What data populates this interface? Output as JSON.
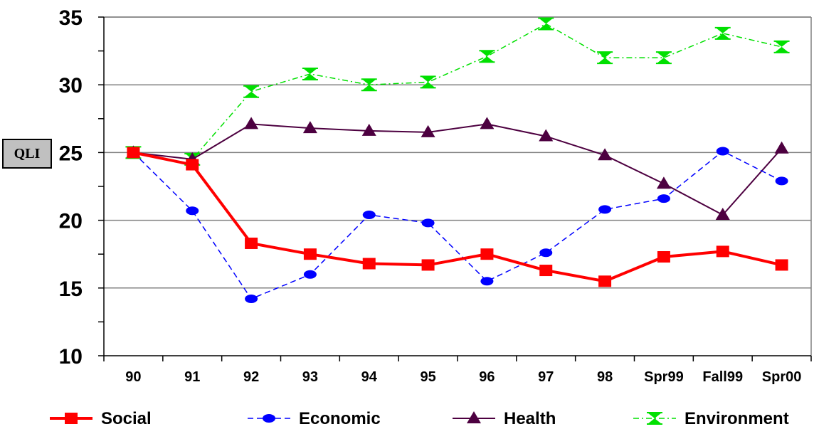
{
  "chart_data": {
    "type": "line",
    "ylabel": "QLI",
    "xlabel": "",
    "title": "",
    "ylim": [
      10,
      35
    ],
    "yticks": [
      10,
      15,
      20,
      25,
      30,
      35
    ],
    "categories": [
      "90",
      "91",
      "92",
      "93",
      "94",
      "95",
      "96",
      "97",
      "98",
      "Spr99",
      "Fall99",
      "Spr00"
    ],
    "grid": "horizontal",
    "legend_position": "bottom",
    "series": [
      {
        "name": "Social",
        "color": "#ff0000",
        "marker": "square",
        "line": "solid",
        "values": [
          25.0,
          24.1,
          18.3,
          17.5,
          16.8,
          16.7,
          17.5,
          16.3,
          15.5,
          17.3,
          17.7,
          16.7
        ]
      },
      {
        "name": "Economic",
        "color": "#0000ff",
        "marker": "circle",
        "line": "dashed",
        "values": [
          25.0,
          20.7,
          14.2,
          16.0,
          20.4,
          19.8,
          15.5,
          17.6,
          20.8,
          21.6,
          25.1,
          22.9
        ]
      },
      {
        "name": "Health",
        "color": "#4d0040",
        "marker": "triangle",
        "line": "solid",
        "values": [
          25.0,
          24.5,
          27.1,
          26.8,
          26.6,
          26.5,
          27.1,
          26.2,
          24.8,
          22.7,
          20.4,
          25.3
        ]
      },
      {
        "name": "Environment",
        "color": "#00e000",
        "marker": "hourglass",
        "line": "dashdot",
        "values": [
          25.0,
          24.5,
          29.5,
          30.8,
          30.0,
          30.2,
          32.1,
          34.5,
          32.0,
          32.0,
          33.8,
          32.8
        ]
      }
    ]
  }
}
